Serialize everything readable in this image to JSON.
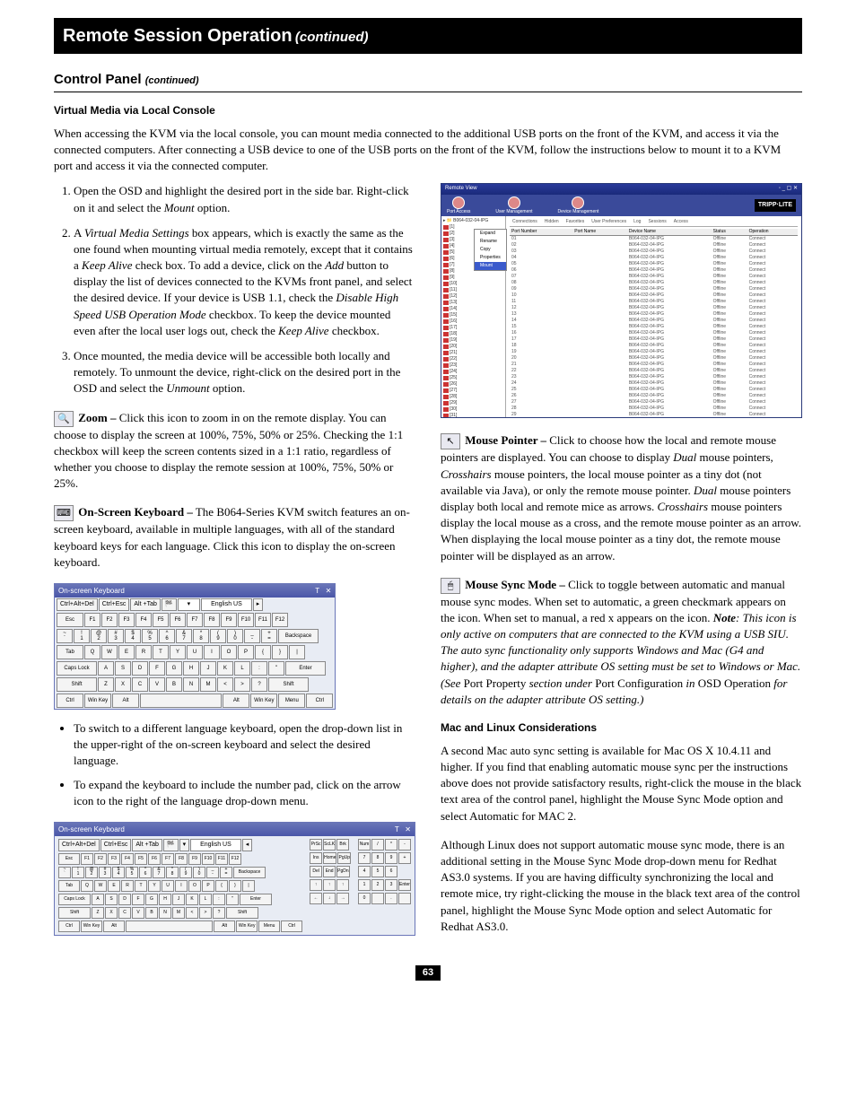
{
  "page": {
    "header_title": "Remote Session Operation",
    "header_sub": "(continued)",
    "section_title": "Control Panel",
    "section_sub": "(continued)",
    "page_number": "63"
  },
  "vm": {
    "title": "Virtual Media via Local Console",
    "intro": "When accessing the KVM via the local console, you can mount media connected to the additional USB ports on the front of the KVM, and access it via the connected computers. After connecting a USB device to one of the USB ports on the front of the KVM, follow the instructions below to mount it to a KVM port and access it via the connected computer.",
    "steps": [
      {
        "pre": "Open the OSD and highlight the desired port in the side bar. Right-click on it and select the ",
        "i": "Mount",
        "post": " option."
      },
      {
        "pre": "A ",
        "i": "Virtual Media Settings",
        "mid": " box appears, which is exactly the same as the one found when mounting virtual media remotely, except that it contains a ",
        "i2": "Keep Alive",
        "mid2": " check box. To add a device, click on the ",
        "i3": "Add",
        "mid3": " button to display the list of devices connected to the KVMs front panel, and select the desired device. If your device is USB 1.1, check the ",
        "i4": "Disable High Speed USB Operation Mode",
        "mid4": " checkbox. To keep the device mounted even after the local user logs out, check the ",
        "i5": "Keep Alive",
        "post": " checkbox."
      },
      {
        "pre": "Once mounted, the media device will be accessible both locally and remotely. To unmount the device, right-click on the desired port in the OSD and select the ",
        "i": "Unmount",
        "post": " option."
      }
    ]
  },
  "kvm": {
    "window_title": "Remote View",
    "logo": "TRIPP·LITE",
    "tools": [
      "Port Access",
      "User Management",
      "Device Management"
    ],
    "tree_root": "B064-032-04-IPG",
    "ctx_menu": [
      "Expand",
      "Rename",
      "Copy",
      "Properties",
      "Mount"
    ],
    "tabs": [
      "Connections",
      "Hidden",
      "Favorites",
      "User Preferences",
      "Log",
      "Sessions",
      "Access"
    ],
    "columns": [
      "Port Number",
      "Port Name",
      "Device Name",
      "Status",
      "Operation"
    ],
    "device_name": "B064-032-04-IPG",
    "status": "Offline",
    "op": "Connect",
    "row_count": 32
  },
  "zoom": {
    "label": "Zoom –",
    "text": " Click this icon to zoom in on the remote display. You can choose to display the screen at 100%, 75%, 50% or 25%. Checking the 1:1 checkbox will keep the screen contents sized in a 1:1 ratio, regardless of whether you choose to display the remote session at 100%, 75%, 50% or 25%."
  },
  "osk": {
    "label": "On-Screen Keyboard –",
    "text": " The B064-Series KVM switch features an on-screen keyboard, available in multiple languages, with all of the standard keyboard keys for each language. Click this icon to display the on-screen keyboard.",
    "window_title": "On-screen Keyboard",
    "top_buttons": [
      "Ctrl+Alt+Del",
      "Ctrl+Esc",
      "Alt +Tab"
    ],
    "lang": "English US",
    "rows": {
      "fn": [
        "Esc",
        "F1",
        "F2",
        "F3",
        "F4",
        "F5",
        "F6",
        "F7",
        "F8",
        "F9",
        "F10",
        "F11",
        "F12"
      ],
      "num_top": [
        "~",
        "!",
        "@",
        "#",
        "$",
        "%",
        "^",
        "&",
        "*",
        "(",
        ")",
        "_",
        "+"
      ],
      "num_bot": [
        "`",
        "1",
        "2",
        "3",
        "4",
        "5",
        "6",
        "7",
        "8",
        "9",
        "0",
        "-",
        "="
      ],
      "backspace": "Backspace",
      "tab": "Tab",
      "q": [
        "Q",
        "W",
        "E",
        "R",
        "T",
        "Y",
        "U",
        "I",
        "O",
        "P",
        "{",
        "}",
        "|"
      ],
      "caps": "Caps Lock",
      "a": [
        "A",
        "S",
        "D",
        "F",
        "G",
        "H",
        "J",
        "K",
        "L",
        ":",
        "\"",
        "Enter"
      ],
      "shift": "Shift",
      "z": [
        "Z",
        "X",
        "C",
        "V",
        "B",
        "N",
        "M",
        "<",
        ">",
        "?"
      ],
      "bottom": [
        "Ctrl",
        "Win Key",
        "Alt",
        "",
        "Alt",
        "Win Key",
        "Menu",
        "Ctrl"
      ]
    },
    "numpad_extra": [
      "PrSc",
      "ScLK",
      "Brk",
      "Ins",
      "Home",
      "PgUp",
      "Del",
      "End",
      "PgDn"
    ],
    "numpad_lock": [
      "Num",
      "/",
      "*",
      "-",
      "7",
      "8",
      "9",
      "+",
      "4",
      "5",
      "6",
      "1",
      "2",
      "3",
      "Enter",
      "0",
      "."
    ],
    "bullets": [
      "To switch to a different language keyboard, open the drop-down list in the upper-right of the on-screen keyboard and select the desired language.",
      "To expand the keyboard to include the number pad, click on the arrow icon to the right of the language drop-down menu."
    ]
  },
  "mp": {
    "label": "Mouse Pointer –",
    "pre": " Click to choose how the local and remote mouse pointers are displayed. You can choose to display ",
    "dual": "Dual",
    "mid1": " mouse pointers, ",
    "cross": "Crosshairs",
    "mid2": " mouse pointers, the local mouse pointer as a tiny dot (not available via Java), or only the remote mouse pointer. ",
    "dual2": "Dual",
    "mid3": " mouse pointers display both local and remote mice as arrows. ",
    "cross2": "Crosshairs",
    "post": " mouse pointers display the local mouse as a cross, and the remote mouse pointer as an arrow. When displaying the local mouse pointer as a tiny dot, the remote mouse pointer will be displayed as an arrow."
  },
  "msm": {
    "label": "Mouse Sync Mode –",
    "text1": " Click to toggle between automatic and manual mouse sync modes. When set to automatic, a green checkmark appears on the icon. When set to manual, a red x appears on the icon. ",
    "note_label": "Note",
    "note_italic": ": This icon is only active on computers that are connected to the KVM using a USB SIU. The auto sync functionality only supports Windows and Mac (G4 and higher), and the adapter attribute OS setting must be set to Windows or Mac. (See ",
    "pp": "Port Property",
    "mid": " section under ",
    "pc": "Port Configuration",
    "in": " in ",
    "osd": "OSD Operation",
    "post": " for details on the adapter attribute OS setting.)"
  },
  "mac": {
    "title": "Mac and Linux Considerations",
    "p1": "A second Mac auto sync setting is available for Mac OS X 10.4.11 and higher. If you find that enabling automatic mouse sync per the instructions above does not provide satisfactory results, right-click the mouse in the black text area of the control panel, highlight the Mouse Sync Mode option and select Automatic for MAC 2.",
    "p2": "Although Linux does not support automatic mouse sync mode, there is an additional setting in the Mouse Sync Mode drop-down menu for Redhat AS3.0 systems. If you are having difficulty synchronizing the local and remote mice, try right-clicking the mouse in the black text area of the control panel, highlight the Mouse Sync Mode option and select Automatic for Redhat AS3.0."
  }
}
